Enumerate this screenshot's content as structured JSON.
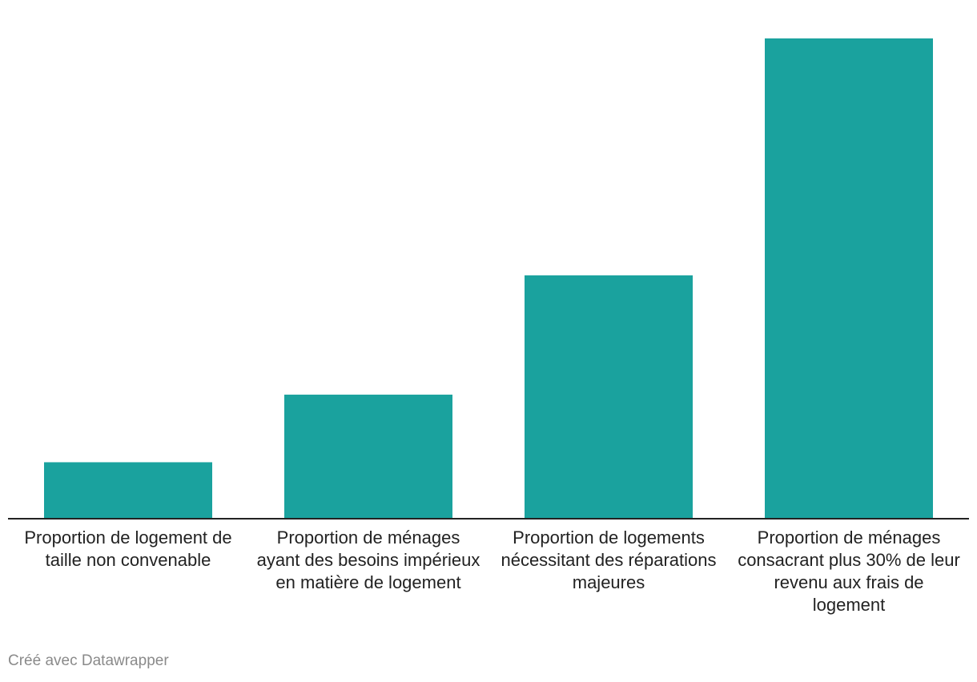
{
  "chart_data": {
    "type": "bar",
    "categories": [
      "Proportion de logement de taille non convenable",
      "Proportion de ménages ayant des besoins impérieux en matière de logement",
      "Proportion de logements nécessitant des réparations majeures",
      "Proportion de ménages consacrant plus 30% de leur revenu aux frais de logement"
    ],
    "values": [
      7,
      15.5,
      30.5,
      60.3
    ],
    "ylim": [
      0,
      60.3
    ],
    "grid": false,
    "bar_color": "#1aa29e",
    "axis_color": "#222222"
  },
  "credit": "Créé avec Datawrapper"
}
